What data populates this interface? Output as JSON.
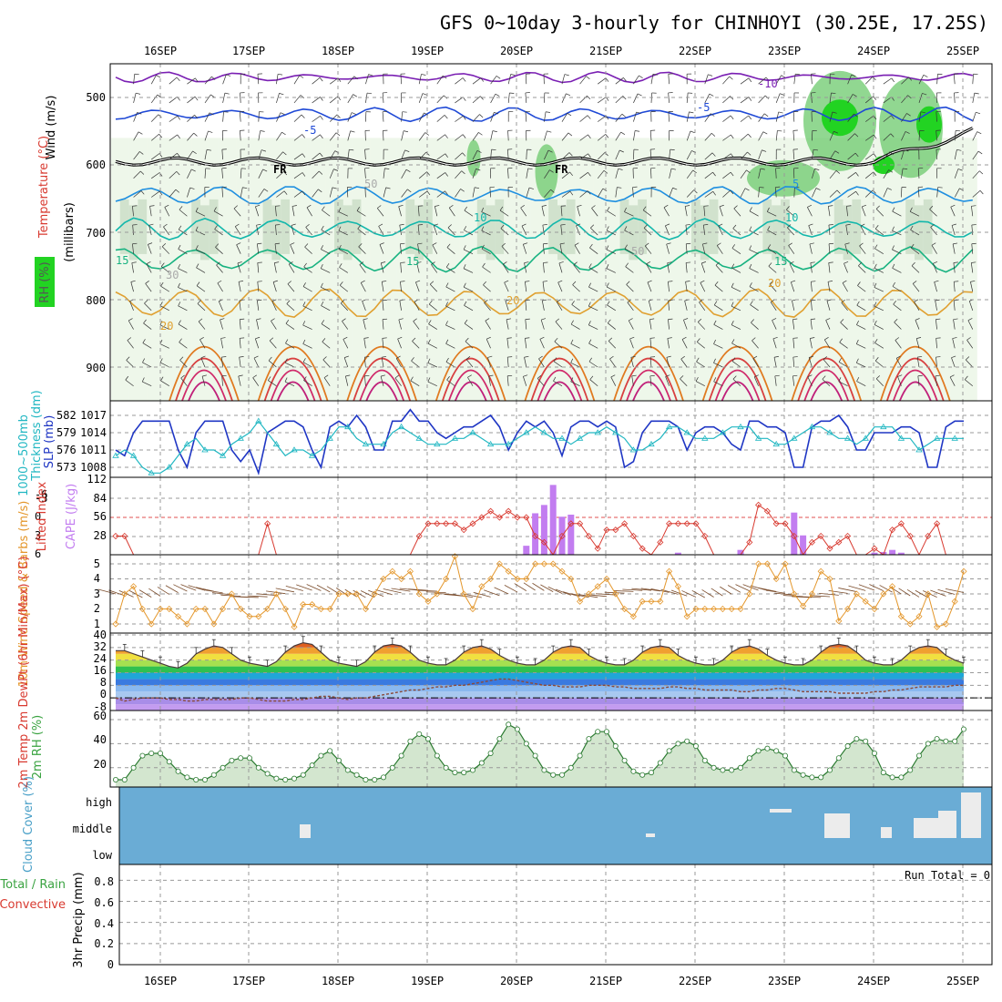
{
  "header": {
    "title": "GFS 0~10day 3-hourly for CHINHOYI (30.25E, 17.25S)"
  },
  "days": [
    "16SEP",
    "17SEP",
    "18SEP",
    "19SEP",
    "20SEP",
    "21SEP",
    "22SEP",
    "23SEP",
    "24SEP",
    "25SEP"
  ],
  "colors": {
    "rh_light": "#eef7ea",
    "rh_mid": "#c9dcc6",
    "rh_dark": "#9fb39c",
    "rh_green": "#6cc96c",
    "rh_bright": "#22d322",
    "cloud_bg": "#6aacd5",
    "cloud_fill": "#ececec",
    "slp": "#1f36c4",
    "thick": "#21b7c2",
    "li": "#d8392f",
    "cape": "#c27df0",
    "wind": "#e4972c",
    "barb": "#7a4b2a",
    "rh": "#3aa341"
  },
  "chart_data": [
    {
      "panel": "profile",
      "type": "contour",
      "ylabel_parts": [
        "Wind (m/s)",
        "Temperature (°C)",
        "(millibars)",
        "RH (%)"
      ],
      "y_ticks": [
        500,
        600,
        700,
        800,
        900
      ],
      "ylim": [
        450,
        950
      ],
      "isotherm_labels": [
        "-10",
        "-5",
        "5",
        "10",
        "15",
        "20"
      ],
      "left_labels": [
        "15",
        "20"
      ],
      "freezing_label": "FR",
      "freezing_level_mb": 595,
      "rh_contour_labels": [
        "30",
        "50"
      ],
      "isotherms": [
        {
          "c": -10,
          "p": 470
        },
        {
          "c": -5,
          "p": 525
        },
        {
          "c": 5,
          "p": 645
        },
        {
          "c": 10,
          "p": 695
        },
        {
          "c": 15,
          "p": 740
        },
        {
          "c": 20,
          "p": 805
        }
      ]
    },
    {
      "panel": "slp_thickness",
      "type": "line",
      "ylabel_left": "Thickness (dm)",
      "ylabel_left2": "1000~500mb",
      "ylabel_right": "SLP (mb)",
      "y_ticks_left": [
        "582",
        "579",
        "576",
        "573"
      ],
      "y_ticks_right": [
        "1017",
        "1014",
        "1011",
        "1008"
      ],
      "series": [
        {
          "name": "SLP",
          "values": [
            1011,
            1010,
            1014,
            1016,
            1016,
            1016,
            1016,
            1011,
            1008,
            1014,
            1016,
            1016,
            1016,
            1011,
            1009,
            1011,
            1007,
            1014,
            1015,
            1016,
            1016,
            1015,
            1011,
            1008,
            1015,
            1016,
            1015,
            1017,
            1015,
            1011,
            1011,
            1016,
            1016,
            1018,
            1016,
            1016,
            1014,
            1013,
            1014,
            1015,
            1015,
            1016,
            1017,
            1015,
            1011,
            1014,
            1016,
            1015,
            1016,
            1014,
            1010,
            1015,
            1016,
            1016,
            1015,
            1016,
            1015,
            1008,
            1009,
            1014,
            1016,
            1016,
            1016,
            1015,
            1011,
            1014,
            1015,
            1015,
            1014,
            1012,
            1011,
            1016,
            1016,
            1015,
            1015,
            1014,
            1008,
            1008,
            1015,
            1016,
            1016,
            1017,
            1015,
            1011,
            1011,
            1014,
            1014,
            1014,
            1015,
            1015,
            1014,
            1008,
            1008,
            1015,
            1016,
            1016
          ]
        },
        {
          "name": "Thickness",
          "values": [
            575,
            576,
            575,
            573,
            572,
            572,
            573,
            575,
            577,
            578,
            576,
            576,
            575,
            577,
            578,
            579,
            581,
            579,
            577,
            575,
            576,
            576,
            575,
            576,
            578,
            580,
            580,
            578,
            577,
            577,
            577,
            579,
            580,
            579,
            578,
            577,
            577,
            577,
            578,
            578,
            579,
            578,
            577,
            577,
            577,
            578,
            579,
            580,
            579,
            578,
            578,
            577,
            578,
            579,
            579,
            580,
            579,
            578,
            576,
            576,
            577,
            578,
            580,
            580,
            579,
            578,
            578,
            578,
            579,
            580,
            580,
            580,
            578,
            578,
            577,
            577,
            578,
            579,
            580,
            580,
            579,
            578,
            578,
            577,
            578,
            580,
            580,
            580,
            578,
            578,
            576,
            577,
            578,
            578,
            578,
            578
          ]
        }
      ]
    },
    {
      "panel": "li_cape",
      "type": "line+bar",
      "ylabel_left": "Lifted Index",
      "ylabel_right": "CAPE (J/kg)",
      "y_ticks_left": [
        "-6",
        "-3",
        "0",
        "3",
        "6"
      ],
      "y_ticks_right": [
        "112",
        "84",
        "56",
        "28"
      ],
      "series": [
        {
          "name": "Lifted Index",
          "values": [
            3,
            3,
            6,
            6,
            6,
            6,
            6,
            6,
            6,
            6,
            6,
            6,
            6,
            6,
            6,
            6,
            6,
            1,
            6,
            6,
            6,
            6,
            6,
            6,
            6,
            6,
            6,
            6,
            6,
            6,
            6,
            6,
            6,
            6,
            3,
            1,
            1,
            1,
            1,
            2,
            1,
            0,
            -1,
            0,
            -1,
            0,
            0,
            3,
            4,
            6,
            3,
            1,
            1,
            3,
            5,
            2,
            2,
            1,
            3,
            5,
            6,
            4,
            1,
            1,
            1,
            1,
            3,
            6,
            6,
            6,
            6,
            4,
            -2,
            -1,
            1,
            1,
            3,
            6,
            4,
            3,
            5,
            4,
            3,
            6,
            6,
            5,
            6,
            2,
            1,
            3,
            6,
            3,
            1,
            6,
            6,
            6
          ]
        },
        {
          "name": "CAPE",
          "values": [
            0,
            0,
            0,
            0,
            0,
            0,
            0,
            0,
            0,
            0,
            0,
            0,
            0,
            0,
            0,
            0,
            0,
            0,
            0,
            0,
            0,
            0,
            0,
            0,
            0,
            0,
            0,
            0,
            0,
            0,
            0,
            0,
            0,
            0,
            0,
            0,
            0,
            0,
            0,
            0,
            0,
            0,
            0,
            0,
            0,
            0,
            13,
            60,
            72,
            101,
            55,
            58,
            0,
            0,
            0,
            0,
            0,
            0,
            0,
            0,
            0,
            0,
            0,
            3,
            0,
            0,
            0,
            0,
            0,
            0,
            7,
            0,
            0,
            0,
            0,
            0,
            61,
            28,
            0,
            0,
            0,
            0,
            0,
            0,
            0,
            3,
            4,
            7,
            3,
            0,
            0,
            0,
            0,
            0,
            0,
            0
          ]
        }
      ]
    },
    {
      "panel": "wind10m",
      "type": "line",
      "ylabel": "10m Wind Speed & Barbs (m/s)",
      "y_ticks": [
        "1",
        "2",
        "3",
        "4",
        "5"
      ],
      "series": [
        {
          "name": "Wind speed",
          "values": [
            1,
            3,
            3.5,
            2,
            1,
            2,
            2,
            1.5,
            1,
            2,
            2,
            1,
            2,
            3,
            2,
            1.5,
            1.5,
            2,
            3,
            2,
            0.8,
            2.3,
            2.3,
            2,
            2,
            3,
            3,
            3,
            2,
            3,
            4,
            4.5,
            4,
            4.5,
            3,
            2.5,
            3,
            4,
            5.5,
            3,
            2,
            3.5,
            4,
            5,
            4.5,
            4,
            4,
            5,
            5,
            5,
            4.5,
            4,
            2.5,
            3,
            3.5,
            4,
            3,
            2,
            1.5,
            2.5,
            2.5,
            2.5,
            4.5,
            3.5,
            1.5,
            2,
            2,
            2,
            2,
            2,
            2,
            3,
            5,
            5,
            4,
            5,
            3,
            2.2,
            3,
            4.5,
            4,
            1.2,
            2,
            3,
            2.5,
            2,
            3,
            3.5,
            1.5,
            1,
            1.5,
            3,
            0.8,
            1,
            2.5,
            4.5
          ]
        }
      ]
    },
    {
      "panel": "temp2m",
      "type": "area+line",
      "ylabel": "2m Temp 2m DewPt (6hr Min/Max) (°C)",
      "y_ticks": [
        "-8",
        "0",
        "8",
        "16",
        "24",
        "32",
        "40"
      ],
      "series": [
        {
          "name": "2m Temp",
          "values": [
            30,
            30,
            28,
            26,
            24,
            22,
            20,
            19,
            22,
            28,
            31,
            33,
            32,
            28,
            24,
            22,
            21,
            20,
            23,
            29,
            33,
            35,
            34,
            29,
            24,
            22,
            21,
            20,
            23,
            29,
            33,
            34,
            33,
            29,
            24,
            22,
            21,
            21,
            24,
            29,
            32,
            33,
            31,
            27,
            24,
            22,
            21,
            21,
            24,
            29,
            32,
            33,
            32,
            27,
            24,
            22,
            21,
            21,
            24,
            29,
            32,
            33,
            32,
            27,
            24,
            22,
            21,
            21,
            24,
            29,
            32,
            33,
            31,
            27,
            24,
            22,
            21,
            21,
            24,
            29,
            33,
            34,
            33,
            29,
            24,
            22,
            21,
            21,
            24,
            29,
            32,
            33,
            32,
            27,
            24,
            22
          ]
        },
        {
          "name": "2m DewPt",
          "values": [
            0,
            -2,
            -1,
            0,
            0,
            0,
            -1,
            -1,
            -2,
            -2,
            -1,
            -1,
            -1,
            -1,
            0,
            0,
            -1,
            -2,
            -2,
            -2,
            -1,
            -1,
            0,
            1,
            1,
            0,
            -1,
            0,
            0,
            1,
            2,
            3,
            4,
            5,
            5,
            6,
            7,
            7,
            8,
            8,
            9,
            10,
            11,
            12,
            12,
            11,
            10,
            9,
            8,
            8,
            7,
            7,
            7,
            8,
            8,
            8,
            7,
            7,
            6,
            6,
            6,
            6,
            7,
            7,
            6,
            6,
            5,
            5,
            5,
            5,
            4,
            4,
            5,
            5,
            6,
            6,
            5,
            4,
            4,
            4,
            4,
            3,
            3,
            3,
            3,
            4,
            4,
            5,
            5,
            6,
            7,
            7,
            7,
            7,
            8,
            8
          ]
        }
      ]
    },
    {
      "panel": "rh2m",
      "type": "area",
      "ylabel": "2m RH (%)",
      "y_ticks": [
        "20",
        "40",
        "60"
      ],
      "series": [
        {
          "name": "2m RH",
          "values": [
            10,
            10,
            20,
            30,
            32,
            32,
            25,
            17,
            12,
            10,
            10,
            14,
            20,
            26,
            28,
            28,
            20,
            15,
            11,
            10,
            11,
            14,
            22,
            30,
            34,
            26,
            18,
            14,
            10,
            10,
            12,
            20,
            30,
            42,
            48,
            44,
            30,
            20,
            16,
            16,
            18,
            24,
            32,
            44,
            56,
            52,
            40,
            30,
            18,
            14,
            14,
            20,
            30,
            44,
            50,
            50,
            38,
            26,
            17,
            14,
            16,
            24,
            34,
            40,
            42,
            38,
            26,
            20,
            18,
            18,
            20,
            28,
            34,
            36,
            34,
            30,
            18,
            14,
            12,
            12,
            18,
            28,
            38,
            44,
            42,
            32,
            16,
            12,
            12,
            18,
            30,
            40,
            44,
            42,
            42,
            52
          ]
        }
      ]
    },
    {
      "panel": "cloud_cover",
      "type": "bar",
      "ylabel": "Cloud Cover (%)",
      "y_labels": [
        "high",
        "middle",
        "low"
      ]
    },
    {
      "panel": "precip",
      "type": "bar",
      "ylabel": "3hr Precip (mm)",
      "ylabel_green": "Total / Rain",
      "ylabel_red": "Convective",
      "y_ticks": [
        "0",
        "0.2",
        "0.4",
        "0.6",
        "0.8"
      ],
      "ylim": [
        0,
        0.95
      ],
      "run_total": "Run Total = 0",
      "values": []
    }
  ]
}
